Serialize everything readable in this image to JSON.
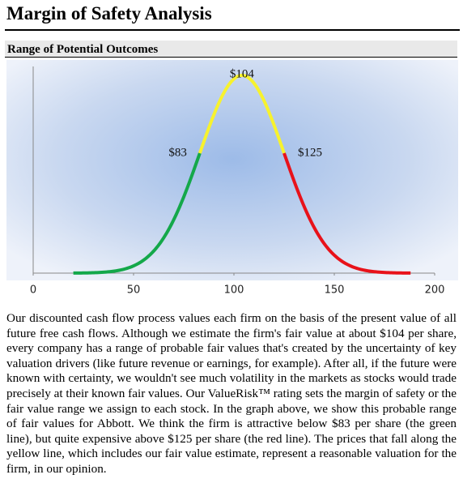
{
  "header": {
    "title": "Margin of Safety Analysis"
  },
  "section": {
    "title": "Range of Potential Outcomes"
  },
  "chart_data": {
    "type": "distribution",
    "values": [
      83,
      104,
      125
    ],
    "value_labels": [
      "$83",
      "$104",
      "$125"
    ],
    "colors": [
      "#14a84a",
      "#f7f22e",
      "#e8121a"
    ],
    "xlim": [
      0,
      200
    ],
    "xticks": [
      0,
      50,
      100,
      150,
      200
    ]
  },
  "body": {
    "text": "Our discounted cash flow process values each firm on the basis of the present value of all future free cash flows. Although we estimate the firm's fair value at about $104 per share, every company has a range of probable fair values that's created by the uncertainty of key valuation drivers (like future revenue or earnings, for example). After all, if the future were known with certainty, we wouldn't see much volatility in the markets as stocks would trade precisely at their known fair values. Our ValueRisk™ rating sets the margin of safety or the fair value range we assign to each stock. In the graph above, we show this probable range of fair values for Abbott. We think the firm is attractive below $83 per share (the green line), but quite expensive above $125 per share (the red line). The prices that fall along the yellow line, which includes our fair value estimate, represent a reasonable valuation for the firm, in our opinion."
  }
}
